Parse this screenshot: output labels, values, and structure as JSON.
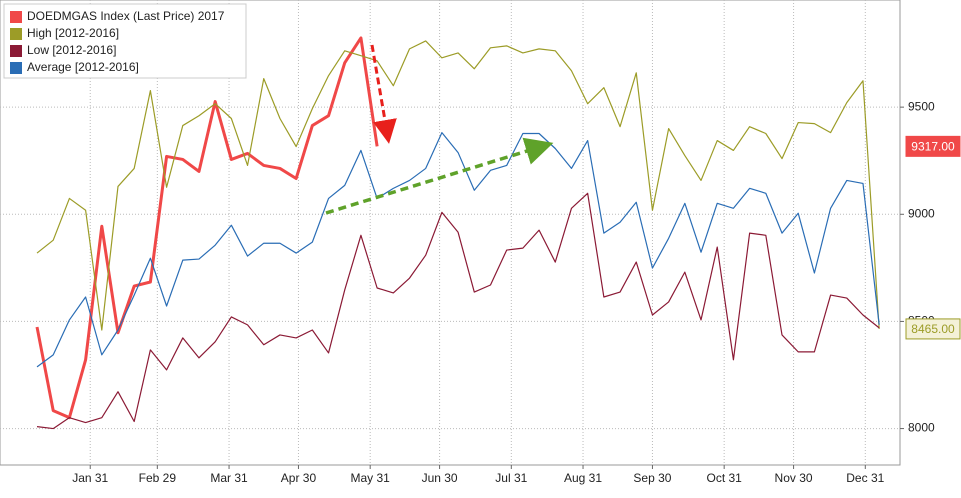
{
  "chart_data": {
    "type": "line",
    "x": [
      8,
      15,
      22,
      29,
      36,
      43,
      50,
      57,
      64,
      71,
      78,
      85,
      92,
      99,
      106,
      113,
      120,
      127,
      134,
      141,
      148,
      155,
      162,
      169,
      176,
      183,
      190,
      197,
      204,
      211,
      218,
      225,
      232,
      239,
      246,
      253,
      260,
      267,
      274,
      281,
      288,
      295,
      302,
      309,
      316,
      323,
      330,
      337,
      344,
      351,
      358,
      365,
      372
    ],
    "xlim": [
      -8,
      381
    ],
    "xticks": [
      {
        "value": 31,
        "label": "Jan 31"
      },
      {
        "value": 60,
        "label": "Feb 29"
      },
      {
        "value": 91,
        "label": "Mar 31"
      },
      {
        "value": 121,
        "label": "Apr 30"
      },
      {
        "value": 152,
        "label": "May 31"
      },
      {
        "value": 182,
        "label": "Jun 30"
      },
      {
        "value": 213,
        "label": "Jul 31"
      },
      {
        "value": 244,
        "label": "Aug 31"
      },
      {
        "value": 274,
        "label": "Sep 30"
      },
      {
        "value": 305,
        "label": "Oct 31"
      },
      {
        "value": 335,
        "label": "Nov 30"
      },
      {
        "value": 366,
        "label": "Dec 31"
      }
    ],
    "ylim": [
      7830,
      10000
    ],
    "yticks": [
      8000,
      8500,
      9000,
      9500
    ],
    "grid": true,
    "legend": "upper left",
    "series": [
      {
        "name": "DOEDMGAS Index (Last Price) 2017",
        "color": "#f04848",
        "width": 3,
        "values": [
          8474,
          8084,
          8051,
          8321,
          8944,
          8447,
          8665,
          8684,
          9270,
          9256,
          9200,
          9526,
          9256,
          9284,
          9228,
          9214,
          9167,
          9414,
          9460,
          9707,
          9823,
          9317,
          null,
          null,
          null,
          null,
          null,
          null,
          null,
          null,
          null,
          null,
          null,
          null,
          null,
          null,
          null,
          null,
          null,
          null,
          null,
          null,
          null,
          null,
          null,
          null,
          null,
          null,
          null,
          null,
          null,
          null,
          null
        ],
        "value_labels": [
          null,
          null,
          null,
          null,
          null,
          null,
          null,
          null,
          null,
          null,
          null,
          null,
          null,
          null,
          null,
          null,
          null,
          null,
          null,
          null,
          null,
          "9317.00",
          null,
          null,
          null,
          null,
          null,
          null,
          null,
          null,
          null,
          null,
          null,
          null,
          null,
          null,
          null,
          null,
          null,
          null,
          null,
          null,
          null,
          null,
          null,
          null,
          null,
          null,
          null,
          null,
          null,
          null,
          null
        ]
      },
      {
        "name": "High [2012-2016]",
        "color": "#9c9c27",
        "width": 1.2,
        "values": [
          8819,
          8879,
          9074,
          9019,
          8460,
          9130,
          9214,
          9577,
          9126,
          9414,
          9460,
          9516,
          9447,
          9228,
          9633,
          9447,
          9316,
          9493,
          9647,
          9763,
          9740,
          9716,
          9600,
          9772,
          9809,
          9730,
          9753,
          9679,
          9777,
          9786,
          9753,
          9772,
          9763,
          9670,
          9516,
          9591,
          9409,
          9660,
          9019,
          9400,
          9274,
          9158,
          9344,
          9298,
          9409,
          9377,
          9260,
          9428,
          9423,
          9381,
          9521,
          9623,
          8465
        ],
        "value_labels": [
          null,
          null,
          null,
          null,
          null,
          null,
          null,
          null,
          null,
          null,
          null,
          null,
          null,
          null,
          null,
          null,
          null,
          null,
          null,
          null,
          null,
          null,
          null,
          null,
          null,
          null,
          null,
          null,
          null,
          null,
          null,
          null,
          null,
          null,
          null,
          null,
          null,
          null,
          null,
          null,
          null,
          null,
          null,
          null,
          null,
          null,
          null,
          null,
          null,
          null,
          null,
          null,
          "8465.00"
        ]
      },
      {
        "name": "Low [2012-2016]",
        "color": "#8b1a35",
        "width": 1.2,
        "values": [
          8009,
          8000,
          8051,
          8028,
          8051,
          8172,
          8033,
          8367,
          8274,
          8423,
          8330,
          8405,
          8521,
          8484,
          8391,
          8437,
          8423,
          8460,
          8353,
          8647,
          8902,
          8656,
          8633,
          8702,
          8809,
          9009,
          8916,
          8637,
          8670,
          8833,
          8842,
          8926,
          8777,
          9028,
          9098,
          8614,
          8637,
          8777,
          8530,
          8591,
          8730,
          8507,
          8847,
          8321,
          8912,
          8902,
          8437,
          8358,
          8358,
          8623,
          8609,
          8530,
          8470
        ]
      },
      {
        "name": "Average [2012-2016]",
        "color": "#2a6db5",
        "width": 1.2,
        "values": [
          8288,
          8344,
          8507,
          8614,
          8344,
          8460,
          8623,
          8795,
          8572,
          8786,
          8791,
          8856,
          8949,
          8805,
          8865,
          8865,
          8819,
          8870,
          9074,
          9135,
          9298,
          9074,
          9121,
          9158,
          9214,
          9381,
          9288,
          9112,
          9205,
          9228,
          9377,
          9377,
          9307,
          9214,
          9344,
          8912,
          8963,
          9056,
          8749,
          8888,
          9051,
          8823,
          9051,
          9028,
          9121,
          9098,
          8912,
          9005,
          8726,
          9028,
          9158,
          9144,
          8484
        ]
      }
    ]
  }
}
